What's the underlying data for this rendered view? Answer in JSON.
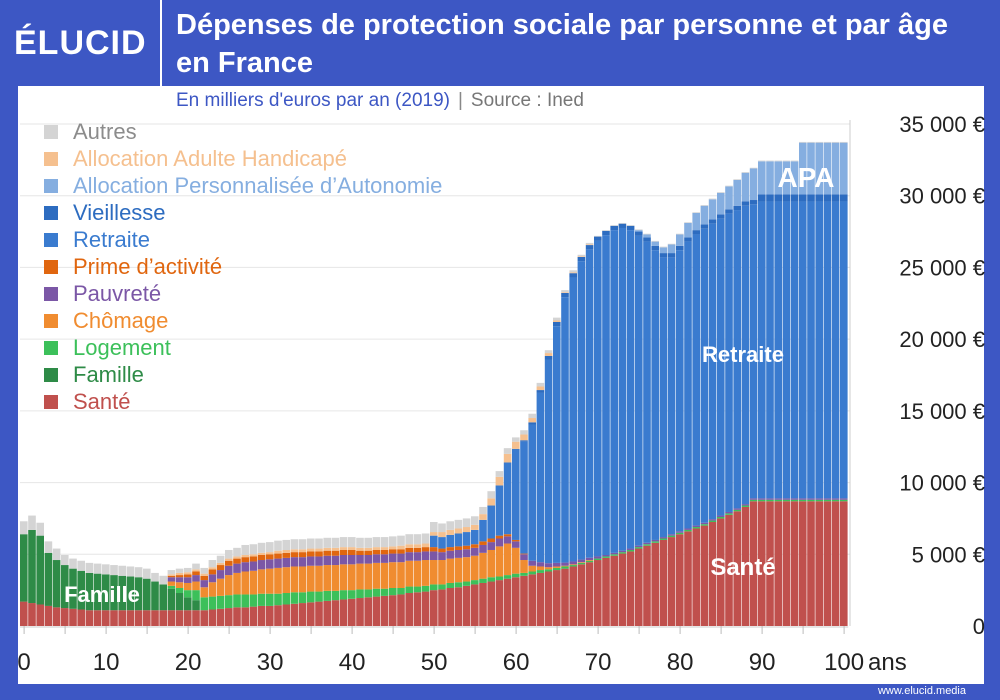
{
  "header": {
    "logo": "ÉLUCID",
    "title": "Dépenses de protection sociale par personne et par âge en France",
    "subtitle": "En milliers d'euros par an (2019)",
    "separator": "|",
    "source": "Source : Ined"
  },
  "footer": "www.elucid.media",
  "colors": {
    "frame": "#3d57c4"
  },
  "chart_data": {
    "type": "bar",
    "stacked": true,
    "title": "Dépenses de protection sociale par personne et par âge en France",
    "subtitle": "En milliers d'euros par an (2019)",
    "xlabel": "ans",
    "x_range": [
      0,
      100
    ],
    "x_ticks": [
      "0",
      "10",
      "20",
      "30",
      "40",
      "50",
      "60",
      "70",
      "80",
      "90",
      "100"
    ],
    "ylim": [
      0,
      35000
    ],
    "y_ticks": [
      "0",
      "5 000 €",
      "10 000 €",
      "15 000 €",
      "20 000 €",
      "25 000 €",
      "30 000 €",
      "35 000 €"
    ],
    "grid": true,
    "legend_placement": "top-left",
    "annotations": [
      {
        "text": "APA"
      },
      {
        "text": "Retraite"
      },
      {
        "text": "Santé"
      },
      {
        "text": "Famille"
      }
    ],
    "series": [
      {
        "name": "Santé",
        "color": "#c0504d",
        "values": [
          1700,
          1600,
          1500,
          1400,
          1300,
          1250,
          1200,
          1150,
          1100,
          1100,
          1100,
          1100,
          1100,
          1100,
          1100,
          1100,
          1100,
          1100,
          1100,
          1100,
          1100,
          1100,
          1100,
          1150,
          1200,
          1250,
          1300,
          1300,
          1350,
          1400,
          1400,
          1450,
          1500,
          1550,
          1600,
          1650,
          1700,
          1750,
          1800,
          1850,
          1900,
          1950,
          2000,
          2050,
          2100,
          2150,
          2200,
          2300,
          2350,
          2400,
          2500,
          2550,
          2650,
          2700,
          2800,
          2900,
          3000,
          3100,
          3200,
          3300,
          3400,
          3500,
          3600,
          3700,
          3800,
          3900,
          4000,
          4150,
          4300,
          4450,
          4600,
          4750,
          4900,
          5050,
          5200,
          5400,
          5600,
          5800,
          6000,
          6200,
          6400,
          6600,
          6800,
          7000,
          7250,
          7500,
          7750,
          8000,
          8300,
          8700,
          8700,
          8700,
          8700,
          8700,
          8700,
          8700,
          8700,
          8700,
          8700,
          8700,
          8700
        ]
      },
      {
        "name": "Famille",
        "color": "#2e8b47",
        "values": [
          4700,
          5100,
          4800,
          3700,
          3300,
          3000,
          2800,
          2700,
          2600,
          2550,
          2500,
          2450,
          2400,
          2350,
          2300,
          2200,
          2000,
          1800,
          1500,
          1200,
          900,
          700,
          0,
          0,
          0,
          0,
          0,
          0,
          0,
          0,
          0,
          0,
          0,
          0,
          0,
          0,
          0,
          0,
          0,
          0,
          0,
          0,
          0,
          0,
          0,
          0,
          0,
          0,
          0,
          0,
          0,
          0,
          0,
          0,
          0,
          0,
          0,
          0,
          0,
          0,
          0,
          0,
          0,
          0,
          0,
          0,
          0,
          0,
          0,
          0,
          0,
          0,
          0,
          0,
          0,
          0,
          0,
          0,
          0,
          0,
          0,
          0,
          0,
          0,
          0,
          0,
          0,
          0,
          0,
          0,
          0,
          0,
          0,
          0,
          0,
          0,
          0,
          0,
          0,
          0,
          0
        ]
      },
      {
        "name": "Logement",
        "color": "#3cc05a",
        "values": [
          0,
          0,
          0,
          0,
          0,
          0,
          0,
          0,
          0,
          0,
          0,
          0,
          0,
          0,
          0,
          0,
          0,
          0,
          200,
          350,
          500,
          700,
          900,
          900,
          900,
          900,
          900,
          900,
          850,
          850,
          850,
          800,
          800,
          800,
          750,
          750,
          700,
          700,
          650,
          650,
          600,
          600,
          550,
          550,
          500,
          500,
          450,
          450,
          400,
          400,
          400,
          350,
          350,
          350,
          300,
          300,
          300,
          300,
          250,
          250,
          250,
          200,
          200,
          200,
          150,
          150,
          150,
          100,
          100,
          100,
          100,
          100,
          100,
          100,
          100,
          100,
          100,
          100,
          100,
          100,
          100,
          100,
          100,
          100,
          100,
          100,
          100,
          100,
          100,
          100,
          100,
          100,
          100,
          100,
          100,
          100,
          100,
          100,
          100,
          100,
          100
        ]
      },
      {
        "name": "Chômage",
        "color": "#f08c30",
        "values": [
          0,
          0,
          0,
          0,
          0,
          0,
          0,
          0,
          0,
          0,
          0,
          0,
          0,
          0,
          0,
          0,
          0,
          0,
          300,
          400,
          500,
          600,
          700,
          1000,
          1200,
          1400,
          1500,
          1600,
          1650,
          1700,
          1750,
          1800,
          1800,
          1800,
          1800,
          1800,
          1800,
          1800,
          1800,
          1800,
          1800,
          1800,
          1800,
          1800,
          1800,
          1800,
          1800,
          1800,
          1800,
          1800,
          1700,
          1700,
          1700,
          1700,
          1700,
          1700,
          1800,
          1900,
          2100,
          2200,
          1800,
          900,
          400,
          250,
          150,
          100,
          50,
          50,
          50,
          50,
          0,
          0,
          0,
          0,
          0,
          0,
          0,
          0,
          0,
          0,
          0,
          0,
          0,
          0,
          0,
          0,
          0,
          0,
          0,
          0,
          0,
          0,
          0,
          0,
          0,
          0,
          0,
          0,
          0,
          0,
          0
        ]
      },
      {
        "name": "Pauvreté",
        "color": "#7b57a6",
        "values": [
          0,
          0,
          0,
          0,
          0,
          0,
          0,
          0,
          0,
          0,
          0,
          0,
          0,
          0,
          0,
          0,
          0,
          0,
          300,
          350,
          400,
          450,
          500,
          550,
          600,
          650,
          650,
          650,
          650,
          650,
          650,
          650,
          650,
          650,
          650,
          650,
          650,
          650,
          650,
          650,
          650,
          600,
          600,
          600,
          600,
          600,
          600,
          600,
          600,
          600,
          600,
          550,
          550,
          550,
          550,
          550,
          550,
          550,
          550,
          500,
          450,
          400,
          350,
          300,
          280,
          250,
          220,
          200,
          180,
          160,
          150,
          100,
          100,
          100,
          100,
          100,
          100,
          100,
          100,
          100,
          100,
          100,
          100,
          100,
          100,
          100,
          100,
          100,
          100,
          100,
          100,
          100,
          100,
          100,
          100,
          100,
          100,
          100,
          100,
          100,
          100
        ]
      },
      {
        "name": "Prime d’activité",
        "color": "#e0660f",
        "values": [
          0,
          0,
          0,
          0,
          0,
          0,
          0,
          0,
          0,
          0,
          0,
          0,
          0,
          0,
          0,
          0,
          0,
          0,
          100,
          150,
          200,
          250,
          300,
          350,
          350,
          350,
          350,
          350,
          350,
          350,
          350,
          350,
          350,
          350,
          350,
          350,
          350,
          350,
          350,
          350,
          350,
          300,
          300,
          300,
          300,
          300,
          300,
          300,
          300,
          300,
          300,
          250,
          250,
          250,
          250,
          250,
          250,
          250,
          200,
          150,
          100,
          50,
          0,
          0,
          0,
          0,
          0,
          0,
          0,
          0,
          0,
          0,
          0,
          0,
          0,
          0,
          0,
          0,
          0,
          0,
          0,
          0,
          0,
          0,
          0,
          0,
          0,
          0,
          0,
          0,
          0,
          0,
          0,
          0,
          0,
          0,
          0,
          0,
          0,
          0,
          0
        ]
      },
      {
        "name": "Retraite",
        "color": "#3a7bcf",
        "values": [
          0,
          0,
          0,
          0,
          0,
          0,
          0,
          0,
          0,
          0,
          0,
          0,
          0,
          0,
          0,
          0,
          0,
          0,
          0,
          0,
          0,
          0,
          0,
          0,
          0,
          0,
          0,
          0,
          0,
          0,
          0,
          0,
          0,
          0,
          0,
          0,
          0,
          0,
          0,
          0,
          0,
          0,
          0,
          0,
          0,
          0,
          0,
          0,
          0,
          0,
          800,
          800,
          850,
          900,
          950,
          1000,
          1500,
          2300,
          3500,
          5000,
          6300,
          7800,
          9500,
          11800,
          14200,
          16500,
          18500,
          19800,
          20800,
          21500,
          22000,
          22300,
          22500,
          22500,
          22200,
          21600,
          21000,
          20200,
          19500,
          19300,
          19600,
          20000,
          20300,
          20500,
          20600,
          20700,
          20800,
          20800,
          20800,
          20500,
          20700,
          20700,
          20700,
          20700,
          20700,
          20700,
          20700,
          20700,
          20700,
          20700,
          20700
        ]
      },
      {
        "name": "Vieillesse",
        "color": "#2d6cc0",
        "values": [
          0,
          0,
          0,
          0,
          0,
          0,
          0,
          0,
          0,
          0,
          0,
          0,
          0,
          0,
          0,
          0,
          0,
          0,
          0,
          0,
          0,
          0,
          0,
          0,
          0,
          0,
          0,
          0,
          0,
          0,
          0,
          0,
          0,
          0,
          0,
          0,
          0,
          0,
          0,
          0,
          0,
          0,
          0,
          0,
          0,
          0,
          0,
          0,
          0,
          0,
          0,
          0,
          0,
          0,
          0,
          0,
          0,
          0,
          0,
          0,
          50,
          100,
          150,
          200,
          250,
          300,
          300,
          300,
          300,
          300,
          300,
          300,
          300,
          300,
          300,
          300,
          300,
          300,
          300,
          300,
          300,
          300,
          300,
          300,
          300,
          300,
          300,
          300,
          300,
          300,
          500,
          500,
          500,
          500,
          500,
          500,
          500,
          500,
          500,
          500,
          500
        ]
      },
      {
        "name": "Allocation Personnalisée d’Autonomie",
        "color": "#85aee0",
        "values": [
          0,
          0,
          0,
          0,
          0,
          0,
          0,
          0,
          0,
          0,
          0,
          0,
          0,
          0,
          0,
          0,
          0,
          0,
          0,
          0,
          0,
          0,
          0,
          0,
          0,
          0,
          0,
          0,
          0,
          0,
          0,
          0,
          0,
          0,
          0,
          0,
          0,
          0,
          0,
          0,
          0,
          0,
          0,
          0,
          0,
          0,
          0,
          0,
          0,
          0,
          0,
          0,
          0,
          0,
          0,
          0,
          0,
          0,
          0,
          0,
          0,
          0,
          0,
          0,
          0,
          0,
          0,
          0,
          0,
          0,
          0,
          0,
          0,
          0,
          0,
          100,
          200,
          300,
          400,
          600,
          800,
          1000,
          1200,
          1300,
          1400,
          1500,
          1600,
          1800,
          2000,
          2200,
          2300,
          2300,
          2300,
          2300,
          2300,
          3600,
          3600,
          3600,
          3600,
          3600,
          3600
        ]
      },
      {
        "name": "Allocation Adulte Handicapé",
        "color": "#f5c08f",
        "values": [
          0,
          0,
          0,
          0,
          0,
          0,
          0,
          0,
          0,
          0,
          0,
          0,
          0,
          0,
          0,
          0,
          0,
          0,
          100,
          150,
          150,
          150,
          150,
          150,
          150,
          150,
          150,
          150,
          150,
          150,
          150,
          200,
          200,
          200,
          200,
          200,
          200,
          200,
          200,
          200,
          200,
          200,
          200,
          200,
          200,
          200,
          250,
          250,
          250,
          250,
          250,
          350,
          350,
          350,
          350,
          350,
          400,
          500,
          600,
          600,
          500,
          400,
          300,
          250,
          200,
          100,
          50,
          50,
          50,
          50,
          0,
          0,
          0,
          0,
          0,
          0,
          0,
          0,
          0,
          0,
          0,
          0,
          0,
          0,
          0,
          0,
          0,
          0,
          0,
          0,
          0,
          0,
          0,
          0,
          0,
          0,
          0,
          0,
          0,
          0,
          0
        ]
      },
      {
        "name": "Autres",
        "color": "#d4d4d4",
        "values": [
          900,
          1000,
          900,
          800,
          800,
          700,
          700,
          700,
          700,
          700,
          700,
          700,
          700,
          700,
          700,
          700,
          600,
          600,
          300,
          300,
          300,
          400,
          400,
          500,
          500,
          600,
          600,
          700,
          700,
          700,
          700,
          700,
          700,
          700,
          700,
          700,
          700,
          700,
          700,
          700,
          700,
          700,
          700,
          700,
          700,
          700,
          700,
          700,
          700,
          700,
          700,
          600,
          600,
          600,
          600,
          600,
          500,
          500,
          400,
          400,
          300,
          300,
          300,
          250,
          200,
          200,
          150,
          150,
          100,
          100,
          50,
          50,
          50,
          50,
          50,
          50,
          50,
          50,
          50,
          50,
          50,
          50,
          50,
          50,
          50,
          50,
          50,
          50,
          50,
          50,
          50,
          50,
          50,
          50,
          50,
          50,
          50,
          50,
          50,
          50,
          50
        ]
      }
    ]
  }
}
